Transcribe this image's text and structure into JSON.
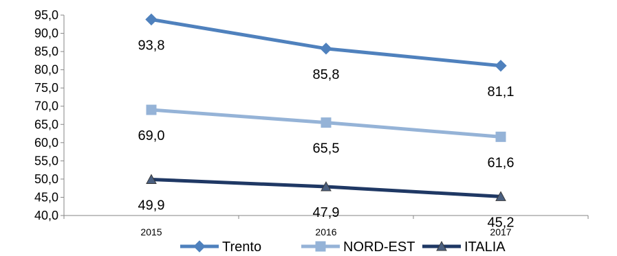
{
  "chart_data": {
    "type": "line",
    "title": "",
    "xlabel": "",
    "ylabel": "",
    "x": [
      "2015",
      "2016",
      "2017"
    ],
    "ylim": [
      40,
      95
    ],
    "ystep": 5,
    "y_tick_labels": [
      "40,0",
      "45,0",
      "50,0",
      "55,0",
      "60,0",
      "65,0",
      "70,0",
      "75,0",
      "80,0",
      "85,0",
      "90,0",
      "95,0"
    ],
    "grid": false,
    "legend_position": "bottom",
    "series": [
      {
        "name": "Trento",
        "values": [
          93.8,
          85.8,
          81.1
        ],
        "labels": [
          "93,8",
          "85,8",
          "81,1"
        ],
        "color": "#4f81bd",
        "marker": "diamond"
      },
      {
        "name": "NORD-EST",
        "values": [
          69.0,
          65.5,
          61.6
        ],
        "labels": [
          "69,0",
          "65,5",
          "61,6"
        ],
        "color": "#95b3d7",
        "marker": "square"
      },
      {
        "name": "ITALIA",
        "values": [
          49.9,
          47.9,
          45.2
        ],
        "labels": [
          "49,9",
          "47,9",
          "45,2"
        ],
        "color": "#1f3864",
        "marker": "triangle"
      }
    ]
  }
}
